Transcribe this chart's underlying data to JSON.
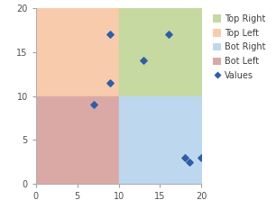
{
  "xlim": [
    0,
    20
  ],
  "ylim": [
    0,
    20
  ],
  "xticks": [
    0,
    5,
    10,
    15,
    20
  ],
  "yticks": [
    0,
    5,
    10,
    15,
    20
  ],
  "midpoint": [
    10,
    10
  ],
  "quadrant_colors": {
    "top_left": "#F8CBAD",
    "top_right": "#C6D9A0",
    "bot_left": "#DBA9A5",
    "bot_right": "#BDD7EE"
  },
  "scatter_x": [
    7,
    9,
    9,
    13,
    16,
    18,
    18.5,
    20
  ],
  "scatter_y": [
    9,
    17,
    11.5,
    14,
    17,
    3,
    2.5,
    3
  ],
  "scatter_color": "#2E5EA8",
  "scatter_marker": "D",
  "scatter_size": 14,
  "legend_labels": [
    "Top Right",
    "Top Left",
    "Bot Right",
    "Bot Left",
    "Values"
  ],
  "legend_colors": [
    "#C6D9A0",
    "#F8CBAD",
    "#BDD7EE",
    "#DBA9A5",
    "#2E5EA8"
  ]
}
